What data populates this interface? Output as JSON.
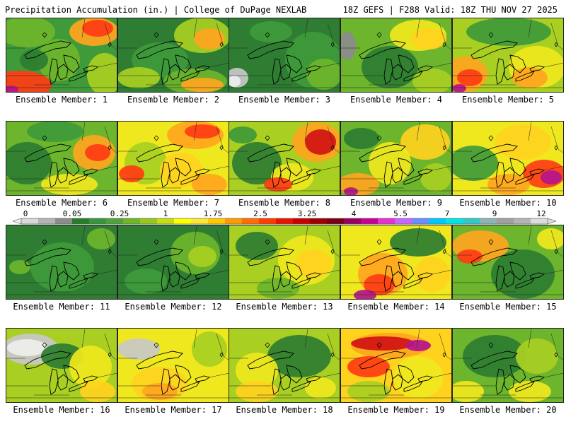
{
  "header": {
    "left": "Precipitation Accumulation (in.) | College of DuPage NEXLAB",
    "right": "18Z GEFS | F288 Valid: 18Z THU NOV 27 2025"
  },
  "colorbar": {
    "ticks": [
      "0",
      "0.05",
      "0.25",
      "1",
      "1.75",
      "2.5",
      "3.25",
      "4",
      "5.5",
      "7",
      "9",
      "12"
    ],
    "colors": [
      "#d8d8d8",
      "#b4b4b4",
      "#8c8c8c",
      "#287d28",
      "#37963c",
      "#4ea43c",
      "#6eb828",
      "#96c81e",
      "#c8dc14",
      "#ffff00",
      "#ffe632",
      "#ffc800",
      "#ff9b00",
      "#ff6e00",
      "#ff3c00",
      "#e61400",
      "#c80000",
      "#a00000",
      "#780014",
      "#960064",
      "#c80096",
      "#e632d2",
      "#c864ff",
      "#6e8cff",
      "#00c8ff",
      "#00e6e6",
      "#32c8c8",
      "#8cb4b4",
      "#a0a0a0",
      "#b4b4b4",
      "#dcdcdc"
    ]
  },
  "panels": [
    {
      "label": "Ensemble Member: 1"
    },
    {
      "label": "Ensemble Member: 2"
    },
    {
      "label": "Ensemble Member: 3"
    },
    {
      "label": "Ensemble Member: 4"
    },
    {
      "label": "Ensemble Member: 5"
    },
    {
      "label": "Ensemble Member: 6"
    },
    {
      "label": "Ensemble Member: 7"
    },
    {
      "label": "Ensemble Member: 8"
    },
    {
      "label": "Ensemble Member: 9"
    },
    {
      "label": "Ensemble Member: 10"
    },
    {
      "label": "Ensemble Member: 11"
    },
    {
      "label": "Ensemble Member: 12"
    },
    {
      "label": "Ensemble Member: 13"
    },
    {
      "label": "Ensemble Member: 14"
    },
    {
      "label": "Ensemble Member: 15"
    },
    {
      "label": "Ensemble Member: 16"
    },
    {
      "label": "Ensemble Member: 17"
    },
    {
      "label": "Ensemble Member: 18"
    },
    {
      "label": "Ensemble Member: 19"
    },
    {
      "label": "Ensemble Member: 20"
    }
  ]
}
